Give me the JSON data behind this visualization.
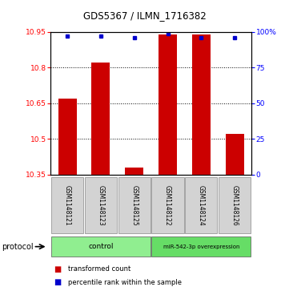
{
  "title": "GDS5367 / ILMN_1716382",
  "samples": [
    "GSM1148121",
    "GSM1148123",
    "GSM1148125",
    "GSM1148122",
    "GSM1148124",
    "GSM1148126"
  ],
  "bar_values": [
    10.67,
    10.82,
    10.38,
    10.94,
    10.94,
    10.52
  ],
  "percentile_values": [
    97,
    97,
    96,
    99,
    96,
    96
  ],
  "y_min": 10.35,
  "y_max": 10.95,
  "y_ticks": [
    10.35,
    10.5,
    10.65,
    10.8,
    10.95
  ],
  "y2_ticks": [
    0,
    25,
    50,
    75,
    100
  ],
  "bar_color": "#cc0000",
  "dot_color": "#0000cc",
  "bar_width": 0.55,
  "group_labels": [
    "control",
    "miR-542-3p overexpression"
  ],
  "group_colors": [
    "#90ee90",
    "#66dd66"
  ],
  "group_sizes": [
    3,
    3
  ],
  "legend_bar_label": "transformed count",
  "legend_dot_label": "percentile rank within the sample"
}
